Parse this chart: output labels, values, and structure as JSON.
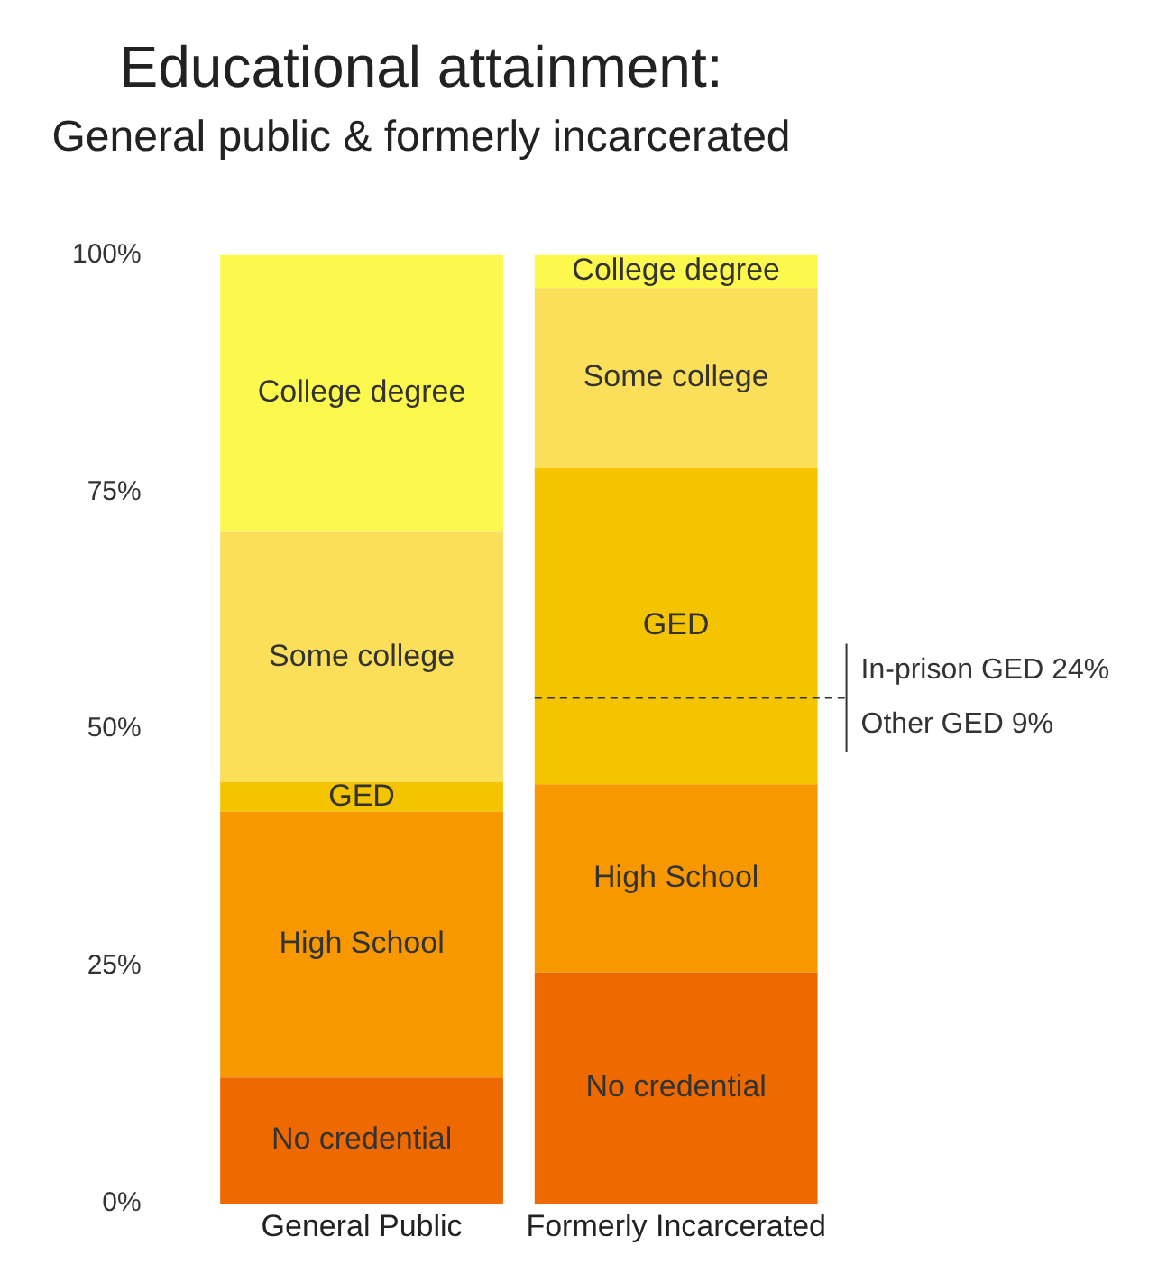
{
  "chart_data": {
    "type": "bar",
    "stacked": true,
    "title": "Educational attainment:",
    "subtitle": "General public & formerly incarcerated",
    "categories": [
      "General Public",
      "Formerly Incarcerated"
    ],
    "series": [
      {
        "name": "No credential",
        "color": "#ee6a00",
        "values": [
          13.3,
          24.4
        ]
      },
      {
        "name": "High School",
        "color": "#f79800",
        "values": [
          28,
          19.8
        ]
      },
      {
        "name": "GED",
        "color": "#f5c400",
        "values": [
          3.1,
          33.3
        ]
      },
      {
        "name": "Some college",
        "color": "#fbde5a",
        "values": [
          26.4,
          19
        ]
      },
      {
        "name": "College degree",
        "color": "#fdf84e",
        "values": [
          29.2,
          3.5
        ]
      }
    ],
    "ylim": [
      0,
      100
    ],
    "yticks": [
      {
        "value": 0,
        "label": "0%"
      },
      {
        "value": 25,
        "label": "25%"
      },
      {
        "value": 50,
        "label": "50%"
      },
      {
        "value": 75,
        "label": "75%"
      },
      {
        "value": 100,
        "label": "100%"
      }
    ],
    "ref_lines": [
      {
        "axis": "y",
        "value": 53.3,
        "label": null,
        "line_style": "dashed",
        "color": "#333333"
      }
    ],
    "annotations": [
      "In-prison GED 24%",
      "Other GED 9%"
    ],
    "grid": false,
    "legend": false
  }
}
